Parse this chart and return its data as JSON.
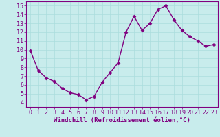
{
  "x": [
    0,
    1,
    2,
    3,
    4,
    5,
    6,
    7,
    8,
    9,
    10,
    11,
    12,
    13,
    14,
    15,
    16,
    17,
    18,
    19,
    20,
    21,
    22,
    23
  ],
  "y": [
    9.9,
    7.6,
    6.8,
    6.4,
    5.6,
    5.1,
    4.9,
    4.3,
    4.7,
    6.3,
    7.4,
    8.5,
    12.0,
    13.8,
    12.2,
    13.0,
    14.6,
    15.0,
    13.4,
    12.2,
    11.5,
    11.0,
    10.4,
    10.6
  ],
  "line_color": "#800080",
  "marker": "D",
  "marker_size": 2.5,
  "linewidth": 1.0,
  "xlabel": "Windchill (Refroidissement éolien,°C)",
  "xlim": [
    -0.5,
    23.5
  ],
  "ylim": [
    3.5,
    15.5
  ],
  "yticks": [
    4,
    5,
    6,
    7,
    8,
    9,
    10,
    11,
    12,
    13,
    14,
    15
  ],
  "xticks": [
    0,
    1,
    2,
    3,
    4,
    5,
    6,
    7,
    8,
    9,
    10,
    11,
    12,
    13,
    14,
    15,
    16,
    17,
    18,
    19,
    20,
    21,
    22,
    23
  ],
  "bg_color": "#c8ecec",
  "grid_color": "#aadddd",
  "axis_color": "#800080",
  "tick_color": "#800080",
  "label_color": "#800080",
  "label_fontsize": 6.5,
  "tick_fontsize": 6.0
}
